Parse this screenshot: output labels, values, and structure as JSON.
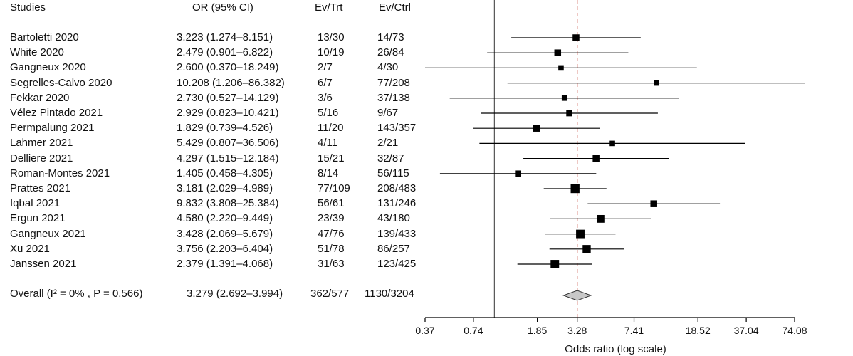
{
  "headers": {
    "study": "Studies",
    "or": "OR (95% CI)",
    "ev_trt": "Ev/Trt",
    "ev_ctrl": "Ev/Ctrl"
  },
  "rows": [
    {
      "study": "Bartoletti 2020",
      "or_text": "3.223 (1.274–8.151)",
      "ev_trt": "13/30",
      "ev_ctrl": "14/73"
    },
    {
      "study": "White 2020",
      "or_text": "2.479 (0.901–6.822)",
      "ev_trt": "10/19",
      "ev_ctrl": "26/84"
    },
    {
      "study": "Gangneux 2020",
      "or_text": "2.600 (0.370–18.249)",
      "ev_trt": "2/7",
      "ev_ctrl": "4/30"
    },
    {
      "study": "Segrelles-Calvo 2020",
      "or_text": "10.208 (1.206–86.382)",
      "ev_trt": "6/7",
      "ev_ctrl": "77/208"
    },
    {
      "study": "Fekkar 2020",
      "or_text": "2.730 (0.527–14.129)",
      "ev_trt": "3/6",
      "ev_ctrl": "37/138"
    },
    {
      "study": "Vélez Pintado 2021",
      "or_text": "2.929 (0.823–10.421)",
      "ev_trt": "5/16",
      "ev_ctrl": "9/67"
    },
    {
      "study": "Permpalung 2021",
      "or_text": "1.829 (0.739–4.526)",
      "ev_trt": "11/20",
      "ev_ctrl": "143/357"
    },
    {
      "study": "Lahmer 2021",
      "or_text": "5.429 (0.807–36.506)",
      "ev_trt": "4/11",
      "ev_ctrl": "2/21"
    },
    {
      "study": "Delliere 2021",
      "or_text": "4.297 (1.515–12.184)",
      "ev_trt": "15/21",
      "ev_ctrl": "32/87"
    },
    {
      "study": "Roman-Montes 2021",
      "or_text": "1.405 (0.458–4.305)",
      "ev_trt": "8/14",
      "ev_ctrl": "56/115"
    },
    {
      "study": "Prattes 2021",
      "or_text": "3.181 (2.029–4.989)",
      "ev_trt": "77/109",
      "ev_ctrl": "208/483"
    },
    {
      "study": "Iqbal 2021",
      "or_text": "9.832 (3.808–25.384)",
      "ev_trt": "56/61",
      "ev_ctrl": "131/246"
    },
    {
      "study": "Ergun 2021",
      "or_text": "4.580 (2.220–9.449)",
      "ev_trt": "23/39",
      "ev_ctrl": "43/180"
    },
    {
      "study": "Gangneux  2021",
      "or_text": "3.428 (2.069–5.679)",
      "ev_trt": "47/76",
      "ev_ctrl": "139/433"
    },
    {
      "study": "Xu 2021",
      "or_text": "3.756 (2.203–6.404)",
      "ev_trt": "51/78",
      "ev_ctrl": "86/257"
    },
    {
      "study": "Janssen 2021",
      "or_text": "2.379 (1.391–4.068)",
      "ev_trt": "31/63",
      "ev_ctrl": "123/425"
    }
  ],
  "overall": {
    "label": "Overall (I² = 0% , P = 0.566)",
    "or_text": "3.279 (2.692–3.994)",
    "ev_trt": "362/577",
    "ev_ctrl": "1130/3204"
  },
  "colors": {
    "reference_line": "#c0392b",
    "diamond_fill": "#c8c8c8",
    "marker": "#000000"
  },
  "chart_data": {
    "type": "forest",
    "xlabel": "Odds ratio (log scale)",
    "x_scale": "log",
    "xlim": [
      0.37,
      74.08
    ],
    "ticks": [
      0.37,
      0.74,
      1.85,
      3.28,
      7.41,
      18.52,
      37.04,
      74.08
    ],
    "tick_labels": [
      "0.37",
      "0.74",
      "1.85",
      "3.28",
      "7.41",
      "18.52",
      "37.04",
      "74.08"
    ],
    "null_line": 1,
    "pooled_line": 3.279,
    "studies": [
      {
        "name": "Bartoletti 2020",
        "or": 3.223,
        "lo": 1.274,
        "hi": 8.151,
        "weight": 3
      },
      {
        "name": "White 2020",
        "or": 2.479,
        "lo": 0.901,
        "hi": 6.822,
        "weight": 3
      },
      {
        "name": "Gangneux 2020",
        "or": 2.6,
        "lo": 0.37,
        "hi": 18.249,
        "weight": 1
      },
      {
        "name": "Segrelles-Calvo 2020",
        "or": 10.208,
        "lo": 1.206,
        "hi": 86.382,
        "weight": 1
      },
      {
        "name": "Fekkar 2020",
        "or": 2.73,
        "lo": 0.527,
        "hi": 14.129,
        "weight": 1
      },
      {
        "name": "Vélez Pintado 2021",
        "or": 2.929,
        "lo": 0.823,
        "hi": 10.421,
        "weight": 2
      },
      {
        "name": "Permpalung 2021",
        "or": 1.829,
        "lo": 0.739,
        "hi": 4.526,
        "weight": 3
      },
      {
        "name": "Lahmer 2021",
        "or": 5.429,
        "lo": 0.807,
        "hi": 36.506,
        "weight": 1
      },
      {
        "name": "Delliere 2021",
        "or": 4.297,
        "lo": 1.515,
        "hi": 12.184,
        "weight": 3
      },
      {
        "name": "Roman-Montes 2021",
        "or": 1.405,
        "lo": 0.458,
        "hi": 4.305,
        "weight": 2
      },
      {
        "name": "Prattes 2021",
        "or": 3.181,
        "lo": 2.029,
        "hi": 4.989,
        "weight": 8
      },
      {
        "name": "Iqbal 2021",
        "or": 9.832,
        "lo": 3.808,
        "hi": 25.384,
        "weight": 3
      },
      {
        "name": "Ergun 2021",
        "or": 4.58,
        "lo": 2.22,
        "hi": 9.449,
        "weight": 5
      },
      {
        "name": "Gangneux  2021",
        "or": 3.428,
        "lo": 2.069,
        "hi": 5.679,
        "weight": 7
      },
      {
        "name": "Xu 2021",
        "or": 3.756,
        "lo": 2.203,
        "hi": 6.404,
        "weight": 6
      },
      {
        "name": "Janssen 2021",
        "or": 2.379,
        "lo": 1.391,
        "hi": 4.068,
        "weight": 7
      }
    ],
    "overall": {
      "or": 3.279,
      "lo": 2.692,
      "hi": 3.994
    }
  }
}
